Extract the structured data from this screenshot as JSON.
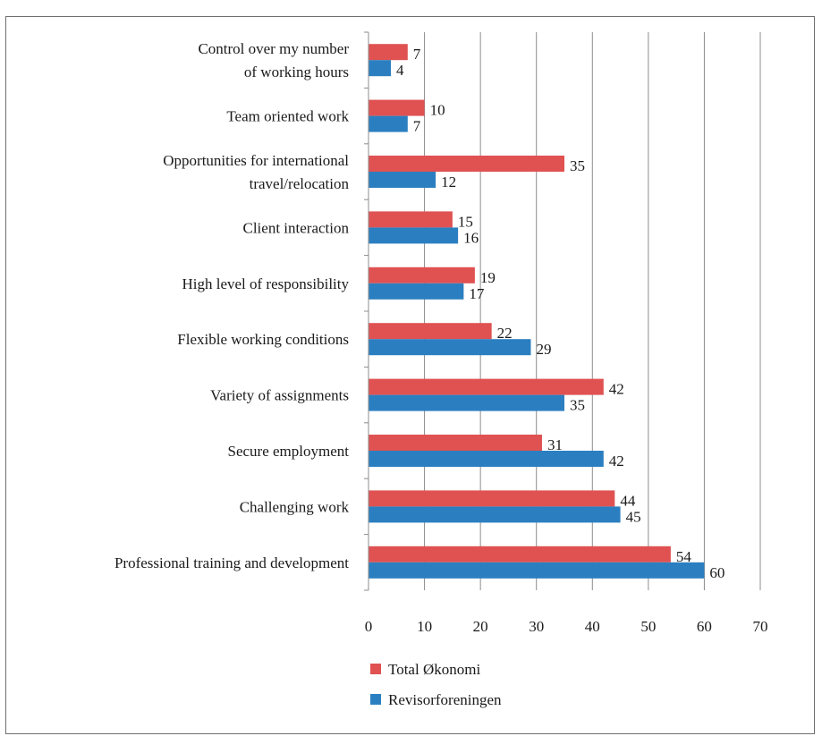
{
  "chart_data": {
    "type": "bar",
    "orientation": "horizontal",
    "categories": [
      [
        "Control over my number",
        "of working hours"
      ],
      [
        "Team oriented work"
      ],
      [
        "Opportunities for international",
        "travel/relocation"
      ],
      [
        "Client interaction"
      ],
      [
        "High level of responsibility"
      ],
      [
        "Flexible working conditions"
      ],
      [
        "Variety of assignments"
      ],
      [
        "Secure employment"
      ],
      [
        "Challenging work"
      ],
      [
        "Professional training and development"
      ]
    ],
    "series": [
      {
        "name": "Total Økonomi",
        "color": "#e05252",
        "values": [
          7,
          10,
          35,
          15,
          19,
          22,
          42,
          31,
          44,
          54
        ]
      },
      {
        "name": "Revisorforeningen",
        "color": "#2b7fc0",
        "values": [
          4,
          7,
          12,
          16,
          17,
          29,
          35,
          42,
          45,
          60
        ]
      }
    ],
    "xlim": [
      0,
      70
    ],
    "xticks": [
      0,
      10,
      20,
      30,
      40,
      50,
      60,
      70
    ],
    "grid": true,
    "legend_position": "bottom-left"
  }
}
